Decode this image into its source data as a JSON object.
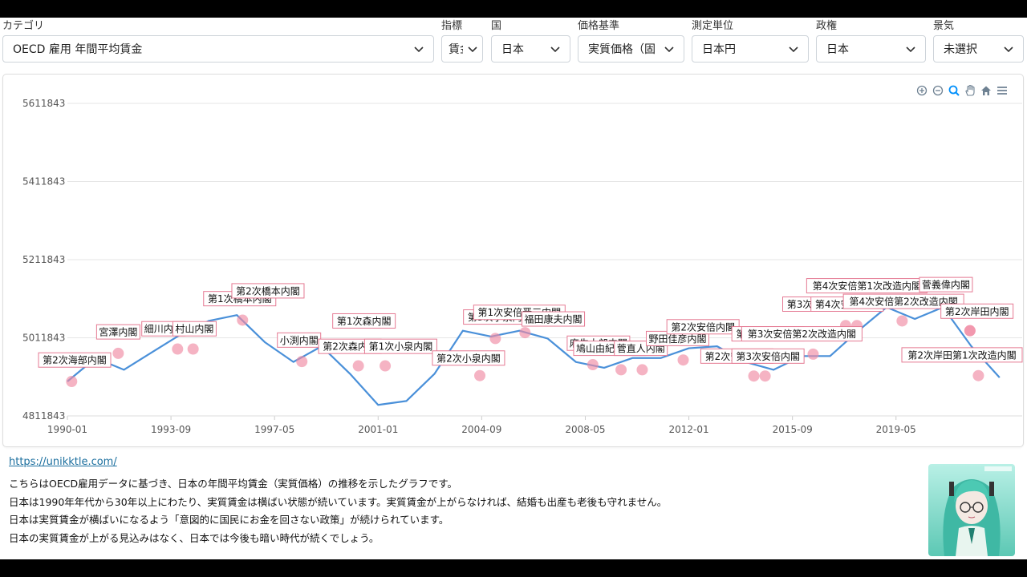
{
  "filters": [
    {
      "label": "カテゴリ",
      "value": "OECD 雇用 年間平均賃金"
    },
    {
      "label": "指標",
      "value": "賃金"
    },
    {
      "label": "国",
      "value": "日本"
    },
    {
      "label": "価格基準",
      "value": "実質価格（固"
    },
    {
      "label": "測定単位",
      "value": "日本円"
    },
    {
      "label": "政権",
      "value": "日本"
    },
    {
      "label": "景気",
      "value": "未選択"
    }
  ],
  "toolbar": {
    "icons": [
      "zoom-in-icon",
      "zoom-out-icon",
      "magnifier-icon",
      "pan-hand-icon",
      "home-icon",
      "menu-icon"
    ]
  },
  "chart_data": {
    "type": "line",
    "y_ticks": [
      "5611843",
      "5411843",
      "5211843",
      "5011843",
      "4811843"
    ],
    "x_ticks": [
      "1990-01",
      "1993-09",
      "1997-05",
      "2001-01",
      "2004-09",
      "2008-05",
      "2012-01",
      "2015-09",
      "2019-05"
    ],
    "ylim": [
      4811843,
      5611843
    ],
    "grid": true,
    "colors": {
      "line": "#4a90d9",
      "marker": "#f08aa3",
      "label_border": "#e57a93"
    },
    "series": [
      {
        "x": [
          1990,
          1991,
          1992,
          1993,
          1994,
          1995,
          1996,
          1997,
          1998,
          1999,
          2000,
          2001,
          2002,
          2003,
          2004,
          2005,
          2006,
          2007,
          2008,
          2009,
          2010,
          2011,
          2012,
          2013,
          2014,
          2015,
          2016,
          2017,
          2018,
          2019,
          2020,
          2021,
          2022,
          2023
        ],
        "values": [
          4900000,
          4960000,
          4930000,
          4975000,
          5020000,
          5055000,
          5070000,
          5000000,
          4950000,
          4990000,
          4920000,
          4840000,
          4850000,
          4920000,
          5030000,
          5015000,
          5030000,
          5010000,
          4950000,
          4935000,
          4960000,
          4960000,
          4985000,
          4990000,
          4950000,
          4930000,
          4965000,
          4965000,
          5030000,
          5090000,
          5060000,
          5090000,
          4990000,
          4910000
        ]
      }
    ],
    "markers": [
      {
        "x": 1990.15,
        "y": 4900000
      },
      {
        "x": 1991.8,
        "y": 4972000
      },
      {
        "x": 1993.9,
        "y": 4983000
      },
      {
        "x": 1994.45,
        "y": 4983000
      },
      {
        "x": 1996.2,
        "y": 5057000
      },
      {
        "x": 1998.3,
        "y": 4951000
      },
      {
        "x": 2000.3,
        "y": 4940000
      },
      {
        "x": 2001.25,
        "y": 4940000
      },
      {
        "x": 2004.6,
        "y": 4915000
      },
      {
        "x": 2005.15,
        "y": 5010000
      },
      {
        "x": 2006.2,
        "y": 5025000
      },
      {
        "x": 2008.6,
        "y": 4943000
      },
      {
        "x": 2009.6,
        "y": 4930000
      },
      {
        "x": 2010.35,
        "y": 4930000
      },
      {
        "x": 2011.8,
        "y": 4955000
      },
      {
        "x": 2014.3,
        "y": 4914000
      },
      {
        "x": 2014.7,
        "y": 4914000
      },
      {
        "x": 2016.4,
        "y": 4970000
      },
      {
        "x": 2017.55,
        "y": 5043000
      },
      {
        "x": 2017.95,
        "y": 5043000
      },
      {
        "x": 2019.55,
        "y": 5055000
      },
      {
        "x": 2021.95,
        "y": 5030000
      },
      {
        "x": 2021.95,
        "y": 5030000
      },
      {
        "x": 2022.25,
        "y": 4915000
      }
    ],
    "annotations": [
      {
        "text": "第2次海部内閣",
        "x": 1990.15,
        "y": 4955000
      },
      {
        "text": "宮澤内閣",
        "x": 1991.8,
        "y": 5027000
      },
      {
        "text": "細川内閣",
        "x": 1993.4,
        "y": 5035000
      },
      {
        "text": "村山内閣",
        "x": 1994.5,
        "y": 5035000
      },
      {
        "text": "第1次橋本内閣",
        "x": 1996.1,
        "y": 5112000
      },
      {
        "text": "第2次橋本内閣",
        "x": 1997.1,
        "y": 5132000
      },
      {
        "text": "小渕内閣",
        "x": 1998.2,
        "y": 5006000
      },
      {
        "text": "第2次森内閣",
        "x": 2000.0,
        "y": 4990000
      },
      {
        "text": "第1次森内閣",
        "x": 2000.5,
        "y": 5055000
      },
      {
        "text": "第1次小泉内閣",
        "x": 2001.8,
        "y": 4990000
      },
      {
        "text": "第2次小泉内閣",
        "x": 2004.2,
        "y": 4960000
      },
      {
        "text": "第3次小泉内閣",
        "x": 2005.3,
        "y": 5065000
      },
      {
        "text": "第1次安倍晋三内閣",
        "x": 2006.0,
        "y": 5077000
      },
      {
        "text": "福田康夫内閣",
        "x": 2007.2,
        "y": 5060000
      },
      {
        "text": "麻生太郎内閣",
        "x": 2008.8,
        "y": 4998000
      },
      {
        "text": "鳩山由紀夫内閣",
        "x": 2009.2,
        "y": 4985000
      },
      {
        "text": "菅直人内閣",
        "x": 2010.3,
        "y": 4985000
      },
      {
        "text": "野田佳彦内閣",
        "x": 2011.6,
        "y": 5010000
      },
      {
        "text": "第2次安倍内閣",
        "x": 2012.5,
        "y": 5040000
      },
      {
        "text": "第2次安倍内閣",
        "x": 2013.7,
        "y": 4965000
      },
      {
        "text": "第3次安倍内閣",
        "x": 2014.8,
        "y": 5022000
      },
      {
        "text": "第3次安倍内閣",
        "x": 2014.8,
        "y": 4965000
      },
      {
        "text": "第3次安倍第2次改造内閣",
        "x": 2016.0,
        "y": 5022000
      },
      {
        "text": "第3次安倍内閣",
        "x": 2016.6,
        "y": 5098000
      },
      {
        "text": "第4次安倍内閣",
        "x": 2017.6,
        "y": 5098000
      },
      {
        "text": "第4次安倍第1次改造内閣",
        "x": 2018.3,
        "y": 5145000
      },
      {
        "text": "第4次安倍第2次改造内閣",
        "x": 2019.6,
        "y": 5105000
      },
      {
        "text": "菅義偉内閣",
        "x": 2021.1,
        "y": 5148000
      },
      {
        "text": "第2次岸田内閣",
        "x": 2022.2,
        "y": 5080000
      },
      {
        "text": "第2次岸田第1次改造内閣",
        "x": 2023.0,
        "y": 4968000
      }
    ]
  },
  "footer": {
    "link": "https://unikktle.com/",
    "lines": [
      "こちらはOECD雇用データに基づき、日本の年間平均賃金（実質価格）の推移を示したグラフです。",
      "日本は1990年年代から30年以上にわたり、実質賃金は横ばい状態が続いています。実質賃金が上がらなければ、結婚も出産も老後も守れません。",
      "日本は実質賃金が横ばいになるよう「意図的に国民にお金を回さない政策」が続けられています。",
      "日本の実質賃金が上がる見込みはなく、日本では今後も暗い時代が続くでしょう。"
    ]
  }
}
